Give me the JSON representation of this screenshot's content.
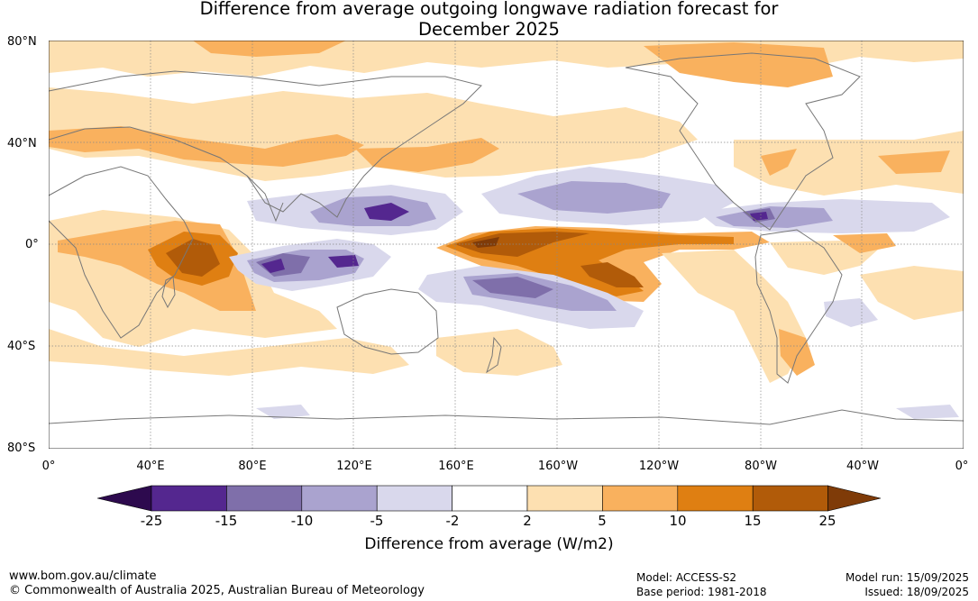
{
  "title_line1": "Difference from average outgoing longwave radiation forecast for",
  "title_line2": "December 2025",
  "lat_labels": [
    "80°N",
    "40°N",
    "0°",
    "40°S",
    "80°S"
  ],
  "lon_labels": [
    "0°",
    "40°E",
    "80°E",
    "120°E",
    "160°E",
    "160°W",
    "120°W",
    "80°W",
    "40°W",
    "0°"
  ],
  "colorbar": {
    "ticks": [
      "-25",
      "-15",
      "-10",
      "-5",
      "-2",
      "2",
      "5",
      "10",
      "15",
      "25"
    ],
    "colors": [
      "#2d0a4e",
      "#54278f",
      "#7f6faa",
      "#aaa3cf",
      "#d9d8ec",
      "#ffffff",
      "#fde0b1",
      "#f9b15e",
      "#df7f12",
      "#b15b09",
      "#7f3b08"
    ],
    "label": "Difference from average (W/m2)"
  },
  "footer": {
    "url": "www.bom.gov.au/climate",
    "copyright": "© Commonwealth of Australia 2025, Australian Bureau of Meteorology",
    "model": "Model: ACCESS-S2",
    "base_period": "Base period: 1981-2018",
    "model_run": "Model run: 15/09/2025",
    "issued": "Issued: 18/09/2025"
  }
}
